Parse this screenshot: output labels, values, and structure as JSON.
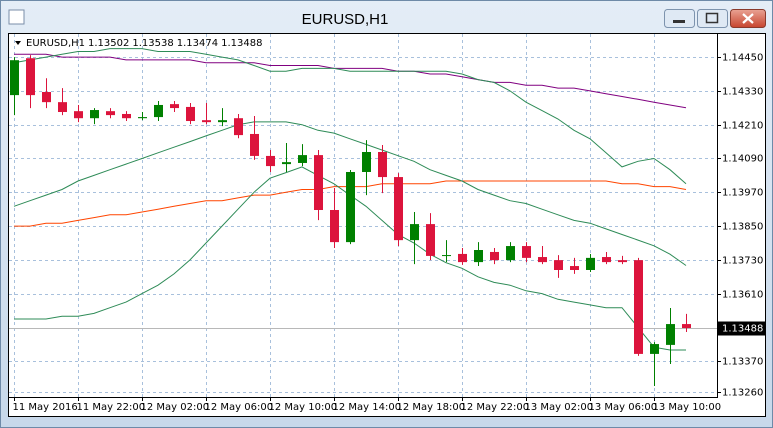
{
  "window": {
    "title": "EURUSD,H1"
  },
  "chart_data": {
    "type": "candlestick",
    "title": "EURUSD,H1",
    "categories": [
      "11 May 2016",
      null,
      null,
      null,
      "11 May 22:00",
      null,
      null,
      null,
      "12 May 02:00",
      null,
      null,
      null,
      "12 May 06:00",
      null,
      null,
      null,
      "12 May 10:00",
      null,
      null,
      null,
      "12 May 14:00",
      null,
      null,
      null,
      "12 May 18:00",
      null,
      null,
      null,
      "12 May 22:00",
      null,
      null,
      null,
      "13 May 02:00",
      null,
      null,
      null,
      "13 May 06:00",
      null,
      null,
      null,
      "13 May 10:00",
      null,
      null
    ],
    "open": [
      1.14315,
      1.14446,
      1.14326,
      1.1429,
      1.14258,
      1.14233,
      1.14258,
      1.14248,
      1.14233,
      1.14237,
      1.14283,
      1.14273,
      1.14226,
      1.14219,
      1.14233,
      1.14177,
      1.14099,
      1.1407,
      1.14074,
      1.14102,
      1.13907,
      1.13793,
      1.14042,
      1.14113,
      1.14024,
      1.138,
      1.13857,
      1.13744,
      1.13751,
      1.13722,
      1.13758,
      1.13729,
      1.13779,
      1.1374,
      1.13729,
      1.13708,
      1.13694,
      1.1374,
      1.13729,
      1.13729,
      1.13396,
      1.13428,
      1.13502
    ],
    "high": [
      1.1445,
      1.14457,
      1.14375,
      1.1434,
      1.1428,
      1.14269,
      1.14269,
      1.14258,
      1.14255,
      1.14294,
      1.14294,
      1.14287,
      1.14287,
      1.14269,
      1.14248,
      1.14241,
      1.1412,
      1.14145,
      1.14141,
      1.1412,
      1.13985,
      1.14049,
      1.14155,
      1.14138,
      1.14038,
      1.139,
      1.13896,
      1.138,
      1.13772,
      1.13793,
      1.13772,
      1.13793,
      1.13793,
      1.13779,
      1.13747,
      1.13737,
      1.13751,
      1.13758,
      1.13744,
      1.13737,
      1.13438,
      1.13559,
      1.13538
    ],
    "low": [
      1.14244,
      1.14269,
      1.14269,
      1.14244,
      1.14219,
      1.14212,
      1.14233,
      1.14223,
      1.14226,
      1.14223,
      1.14255,
      1.14212,
      1.14212,
      1.14205,
      1.14162,
      1.14085,
      1.14042,
      1.14042,
      1.14063,
      1.13871,
      1.13772,
      1.13786,
      1.1396,
      1.13967,
      1.13779,
      1.13715,
      1.13729,
      1.13722,
      1.13712,
      1.13708,
      1.13715,
      1.13722,
      1.13722,
      1.13715,
      1.13666,
      1.1368,
      1.13687,
      1.13715,
      1.13715,
      1.13389,
      1.13282,
      1.1336,
      1.13474
    ],
    "close": [
      1.14439,
      1.14315,
      1.1429,
      1.14255,
      1.14233,
      1.14262,
      1.14244,
      1.14233,
      1.14237,
      1.1428,
      1.14269,
      1.14223,
      1.14219,
      1.14226,
      1.14173,
      1.14099,
      1.14063,
      1.14077,
      1.14102,
      1.13907,
      1.13793,
      1.14042,
      1.14113,
      1.14024,
      1.138,
      1.13857,
      1.13744,
      1.13747,
      1.13722,
      1.13765,
      1.13729,
      1.13779,
      1.13737,
      1.13722,
      1.13694,
      1.13694,
      1.13737,
      1.13722,
      1.13722,
      1.13396,
      1.13431,
      1.13502,
      1.13488
    ],
    "up_color": "#008000",
    "down_color": "#dc143c",
    "series": [
      {
        "color": "#800080",
        "values": [
          1.1446,
          1.1446,
          1.1446,
          1.1445,
          1.1445,
          1.1445,
          1.1445,
          1.1444,
          1.1444,
          1.1444,
          1.1444,
          1.1444,
          1.1443,
          1.1443,
          1.1443,
          1.1443,
          1.1442,
          1.1442,
          1.1442,
          1.1442,
          1.1441,
          1.1441,
          1.1441,
          1.1441,
          1.144,
          1.144,
          1.1439,
          1.1439,
          1.1438,
          1.1437,
          1.1436,
          1.1436,
          1.1435,
          1.1435,
          1.1434,
          1.1434,
          1.1433,
          1.1432,
          1.1431,
          1.143,
          1.1429,
          1.1428,
          1.1427
        ]
      },
      {
        "color": "#ff4500",
        "values": [
          1.1385,
          1.1385,
          1.1386,
          1.1386,
          1.1387,
          1.1388,
          1.1389,
          1.1389,
          1.139,
          1.1391,
          1.1392,
          1.1393,
          1.1394,
          1.1394,
          1.1395,
          1.1396,
          1.1396,
          1.1397,
          1.1398,
          1.1398,
          1.1399,
          1.1399,
          1.1399,
          1.14,
          1.14,
          1.14,
          1.14,
          1.1401,
          1.1401,
          1.1401,
          1.1401,
          1.1401,
          1.1401,
          1.1401,
          1.1401,
          1.1401,
          1.1401,
          1.1401,
          1.14,
          1.14,
          1.1399,
          1.1399,
          1.1398
        ]
      },
      {
        "color": "#2e8b57",
        "values": [
          1.1443,
          1.1444,
          1.1445,
          1.1446,
          1.1447,
          1.1447,
          1.1448,
          1.1448,
          1.1448,
          1.1447,
          1.1447,
          1.1447,
          1.1446,
          1.1445,
          1.1444,
          1.1442,
          1.144,
          1.144,
          1.1441,
          1.1441,
          1.1441,
          1.144,
          1.144,
          1.144,
          1.144,
          1.144,
          1.144,
          1.144,
          1.1439,
          1.1437,
          1.1436,
          1.1433,
          1.1429,
          1.1426,
          1.1423,
          1.1419,
          1.1416,
          1.1411,
          1.1406,
          1.1408,
          1.1409,
          1.1405,
          1.14
        ]
      },
      {
        "color": "#2e8b57",
        "values": [
          1.1392,
          1.1394,
          1.1396,
          1.1398,
          1.1401,
          1.1403,
          1.1405,
          1.1407,
          1.1409,
          1.1411,
          1.1413,
          1.1415,
          1.1417,
          1.1419,
          1.1421,
          1.1422,
          1.1422,
          1.1422,
          1.1421,
          1.1419,
          1.1418,
          1.1416,
          1.1414,
          1.1412,
          1.141,
          1.1408,
          1.1405,
          1.1403,
          1.1401,
          1.1398,
          1.1396,
          1.1394,
          1.1393,
          1.1391,
          1.1389,
          1.1387,
          1.1386,
          1.1384,
          1.1382,
          1.138,
          1.1378,
          1.1375,
          1.1371
        ]
      },
      {
        "color": "#2e8b57",
        "values": [
          1.1352,
          1.1352,
          1.1352,
          1.1353,
          1.1353,
          1.1354,
          1.1356,
          1.1358,
          1.1361,
          1.1364,
          1.1368,
          1.1373,
          1.1379,
          1.1385,
          1.1391,
          1.1397,
          1.1402,
          1.1404,
          1.1406,
          1.1403,
          1.14,
          1.1396,
          1.1392,
          1.1387,
          1.1382,
          1.1379,
          1.1375,
          1.1372,
          1.137,
          1.1367,
          1.1365,
          1.1364,
          1.1362,
          1.1361,
          1.1359,
          1.1358,
          1.1357,
          1.1356,
          1.1356,
          1.1349,
          1.1342,
          1.1341,
          1.1341
        ]
      }
    ],
    "ylim": [
      1.13243,
      1.14532
    ],
    "yticks": [
      {
        "value": 1.1445,
        "label": "1.14450"
      },
      {
        "value": 1.1433,
        "label": "1.14330"
      },
      {
        "value": 1.1421,
        "label": "1.14210"
      },
      {
        "value": 1.1409,
        "label": "1.14090"
      },
      {
        "value": 1.1397,
        "label": "1.13970"
      },
      {
        "value": 1.1385,
        "label": "1.13850"
      },
      {
        "value": 1.1373,
        "label": "1.13730"
      },
      {
        "value": 1.1361,
        "label": "1.13610"
      },
      {
        "value": 1.1337,
        "label": "1.13370"
      },
      {
        "value": 1.1326,
        "label": "1.13260"
      }
    ],
    "grid": true
  }
}
